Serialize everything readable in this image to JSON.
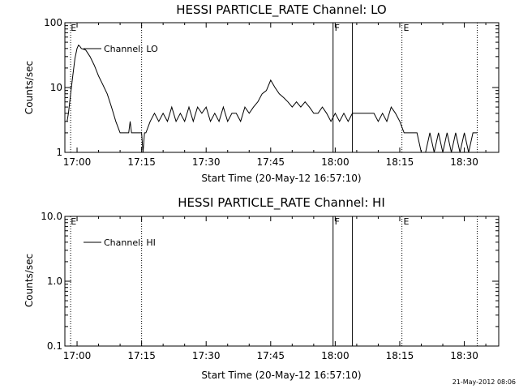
{
  "chart_data": [
    {
      "type": "line",
      "title": "HESSI PARTICLE_RATE Channel: LO",
      "ylabel": "Counts/sec",
      "xlabel": "Start Time (20-May-12 16:57:10)",
      "y_scale": "log",
      "ylim": [
        1,
        100
      ],
      "y_ticks": [
        "1",
        "10",
        "100"
      ],
      "xlim": [
        "16:57:10",
        "18:38:00"
      ],
      "x_ticks": [
        "17:00",
        "17:15",
        "17:30",
        "17:45",
        "18:00",
        "18:15",
        "18:30"
      ],
      "legend": "top-left",
      "series": [
        {
          "name": "Channel: LO",
          "points": [
            [
              "16:57:40",
              3.0
            ],
            [
              "16:58:00",
              4.0
            ],
            [
              "16:58:30",
              8.0
            ],
            [
              "16:59:00",
              15.0
            ],
            [
              "16:59:30",
              28.0
            ],
            [
              "17:00:00",
              40.0
            ],
            [
              "17:00:20",
              45.0
            ],
            [
              "17:00:40",
              43.0
            ],
            [
              "17:01:00",
              40.0
            ],
            [
              "17:02:00",
              38.0
            ],
            [
              "17:03:00",
              30.0
            ],
            [
              "17:04:00",
              22.0
            ],
            [
              "17:05:00",
              15.0
            ],
            [
              "17:06:00",
              11.0
            ],
            [
              "17:07:00",
              8.0
            ],
            [
              "17:08:00",
              5.0
            ],
            [
              "17:09:00",
              3.0
            ],
            [
              "17:10:00",
              2.0
            ],
            [
              "17:11:00",
              2.0
            ],
            [
              "17:12:00",
              2.0
            ],
            [
              "17:12:20",
              3.0
            ],
            [
              "17:12:40",
              2.0
            ],
            [
              "17:13:00",
              2.0
            ],
            [
              "17:14:00",
              2.0
            ],
            [
              "17:15:00",
              2.0
            ],
            [
              "17:15:20",
              1.0
            ],
            [
              "17:15:40",
              2.0
            ],
            [
              "17:16:00",
              2.0
            ],
            [
              "17:17:00",
              3.0
            ],
            [
              "17:18:00",
              4.0
            ],
            [
              "17:19:00",
              3.0
            ],
            [
              "17:20:00",
              4.0
            ],
            [
              "17:21:00",
              3.0
            ],
            [
              "17:22:00",
              5.0
            ],
            [
              "17:23:00",
              3.0
            ],
            [
              "17:24:00",
              4.0
            ],
            [
              "17:25:00",
              3.0
            ],
            [
              "17:26:00",
              5.0
            ],
            [
              "17:27:00",
              3.0
            ],
            [
              "17:28:00",
              5.0
            ],
            [
              "17:29:00",
              4.0
            ],
            [
              "17:30:00",
              5.0
            ],
            [
              "17:31:00",
              3.0
            ],
            [
              "17:32:00",
              4.0
            ],
            [
              "17:33:00",
              3.0
            ],
            [
              "17:34:00",
              5.0
            ],
            [
              "17:35:00",
              3.0
            ],
            [
              "17:36:00",
              4.0
            ],
            [
              "17:37:00",
              4.0
            ],
            [
              "17:38:00",
              3.0
            ],
            [
              "17:39:00",
              5.0
            ],
            [
              "17:40:00",
              4.0
            ],
            [
              "17:41:00",
              5.0
            ],
            [
              "17:42:00",
              6.0
            ],
            [
              "17:43:00",
              8.0
            ],
            [
              "17:44:00",
              9.0
            ],
            [
              "17:45:00",
              13.0
            ],
            [
              "17:46:00",
              10.0
            ],
            [
              "17:47:00",
              8.0
            ],
            [
              "17:48:00",
              7.0
            ],
            [
              "17:49:00",
              6.0
            ],
            [
              "17:50:00",
              5.0
            ],
            [
              "17:51:00",
              6.0
            ],
            [
              "17:52:00",
              5.0
            ],
            [
              "17:53:00",
              6.0
            ],
            [
              "17:54:00",
              5.0
            ],
            [
              "17:55:00",
              4.0
            ],
            [
              "17:56:00",
              4.0
            ],
            [
              "17:57:00",
              5.0
            ],
            [
              "17:58:00",
              4.0
            ],
            [
              "17:59:00",
              3.0
            ],
            [
              "18:00:00",
              4.0
            ],
            [
              "18:01:00",
              3.0
            ],
            [
              "18:02:00",
              4.0
            ],
            [
              "18:03:00",
              3.0
            ],
            [
              "18:04:00",
              4.0
            ],
            [
              "18:05:00",
              4.0
            ],
            [
              "18:06:00",
              4.0
            ],
            [
              "18:07:00",
              4.0
            ],
            [
              "18:08:00",
              4.0
            ],
            [
              "18:09:00",
              4.0
            ],
            [
              "18:10:00",
              3.0
            ],
            [
              "18:11:00",
              4.0
            ],
            [
              "18:12:00",
              3.0
            ],
            [
              "18:13:00",
              5.0
            ],
            [
              "18:14:00",
              4.0
            ],
            [
              "18:15:00",
              3.0
            ],
            [
              "18:16:00",
              2.0
            ],
            [
              "18:17:00",
              2.0
            ],
            [
              "18:18:00",
              2.0
            ],
            [
              "18:19:00",
              2.0
            ],
            [
              "18:20:00",
              1.0
            ],
            [
              "18:21:00",
              1.0
            ],
            [
              "18:22:00",
              2.0
            ],
            [
              "18:23:00",
              1.0
            ],
            [
              "18:24:00",
              2.0
            ],
            [
              "18:25:00",
              1.0
            ],
            [
              "18:26:00",
              2.0
            ],
            [
              "18:27:00",
              1.0
            ],
            [
              "18:28:00",
              2.0
            ],
            [
              "18:29:00",
              1.0
            ],
            [
              "18:30:00",
              2.0
            ],
            [
              "18:31:00",
              1.0
            ],
            [
              "18:32:00",
              2.0
            ],
            [
              "18:33:00",
              2.0
            ]
          ]
        }
      ]
    },
    {
      "type": "line",
      "title": "HESSI PARTICLE_RATE Channel: HI",
      "ylabel": "Counts/sec",
      "xlabel": "Start Time (20-May-12 16:57:10)",
      "y_scale": "log",
      "ylim": [
        0.1,
        10
      ],
      "y_ticks": [
        "0.1",
        "1.0",
        "10.0"
      ],
      "xlim": [
        "16:57:10",
        "18:38:00"
      ],
      "x_ticks": [
        "17:00",
        "17:15",
        "17:30",
        "17:45",
        "18:00",
        "18:15",
        "18:30"
      ],
      "legend": "top-left",
      "series": [
        {
          "name": "Channel: HI",
          "points": []
        }
      ]
    }
  ],
  "markers": {
    "dotted_times": [
      "16:58:30",
      "17:15:00",
      "18:15:30",
      "18:33:00"
    ],
    "solid_times": [
      "17:59:30",
      "18:04:00"
    ],
    "letters": [
      {
        "time": "16:58:20",
        "text": "E"
      },
      {
        "time": "17:59:40",
        "text": "F"
      },
      {
        "time": "18:15:40",
        "text": "E"
      }
    ]
  },
  "timestamp": "21-May-2012 08:06"
}
